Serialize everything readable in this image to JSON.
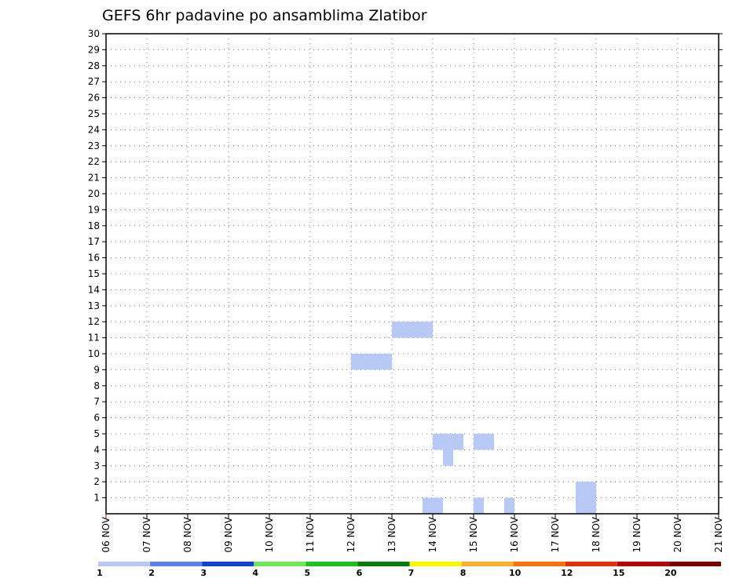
{
  "chart_data": {
    "type": "heatmap",
    "title": "GEFS 6hr padavine po ansamblima Zlatibor",
    "xlabel": "",
    "ylabel": "",
    "x_tick_labels": [
      "06 NOV",
      "07 NOV",
      "08 NOV",
      "09 NOV",
      "10 NOV",
      "11 NOV",
      "12 NOV",
      "13 NOV",
      "14 NOV",
      "15 NOV",
      "16 NOV",
      "17 NOV",
      "18 NOV",
      "19 NOV",
      "20 NOV",
      "21 NOV"
    ],
    "y_tick_labels": [
      "1",
      "2",
      "3",
      "4",
      "5",
      "6",
      "7",
      "8",
      "9",
      "10",
      "11",
      "12",
      "13",
      "14",
      "15",
      "16",
      "17",
      "18",
      "19",
      "20",
      "21",
      "22",
      "23",
      "24",
      "25",
      "26",
      "27",
      "28",
      "29",
      "30"
    ],
    "ylim": [
      0,
      30
    ],
    "grid": true,
    "colorbar": {
      "levels": [
        "1",
        "2",
        "3",
        "4",
        "5",
        "6",
        "7",
        "8",
        "10",
        "12",
        "15",
        "20"
      ],
      "colors": [
        "#b7c9f4",
        "#5b83ea",
        "#1440d2",
        "#6ee858",
        "#1ec01e",
        "#0e7a0e",
        "#f8f800",
        "#f8b030",
        "#f87010",
        "#e03010",
        "#b00808",
        "#780000"
      ]
    },
    "cells": [
      {
        "day": "13 NOV",
        "step": 3,
        "member": 1
      },
      {
        "day": "13 NOV",
        "step": 4,
        "member": 1
      },
      {
        "day": "14 NOV",
        "step": 0,
        "member": 5
      },
      {
        "day": "14 NOV",
        "step": 1,
        "member": 5
      },
      {
        "day": "14 NOV",
        "step": 1,
        "member": 4
      },
      {
        "day": "14 NOV",
        "step": 2,
        "member": 5
      },
      {
        "day": "15 NOV",
        "step": 0,
        "member": 1
      },
      {
        "day": "15 NOV",
        "step": 0,
        "member": 5
      },
      {
        "day": "15 NOV",
        "step": 1,
        "member": 5
      },
      {
        "day": "15 NOV",
        "step": 3,
        "member": 1
      },
      {
        "day": "17 NOV",
        "step": 2,
        "member": 1
      },
      {
        "day": "17 NOV",
        "step": 2,
        "member": 2
      },
      {
        "day": "17 NOV",
        "step": 3,
        "member": 1
      },
      {
        "day": "17 NOV",
        "step": 3,
        "member": 2
      },
      {
        "day": "12 NOV",
        "step": 0,
        "member": 10
      },
      {
        "day": "12 NOV",
        "step": 1,
        "member": 10
      },
      {
        "day": "12 NOV",
        "step": 2,
        "member": 10
      },
      {
        "day": "12 NOV",
        "step": 3,
        "member": 10
      },
      {
        "day": "13 NOV",
        "step": 0,
        "member": 12
      },
      {
        "day": "13 NOV",
        "step": 1,
        "member": 12
      },
      {
        "day": "13 NOV",
        "step": 2,
        "member": 12
      },
      {
        "day": "13 NOV",
        "step": 3,
        "member": 12
      }
    ]
  }
}
